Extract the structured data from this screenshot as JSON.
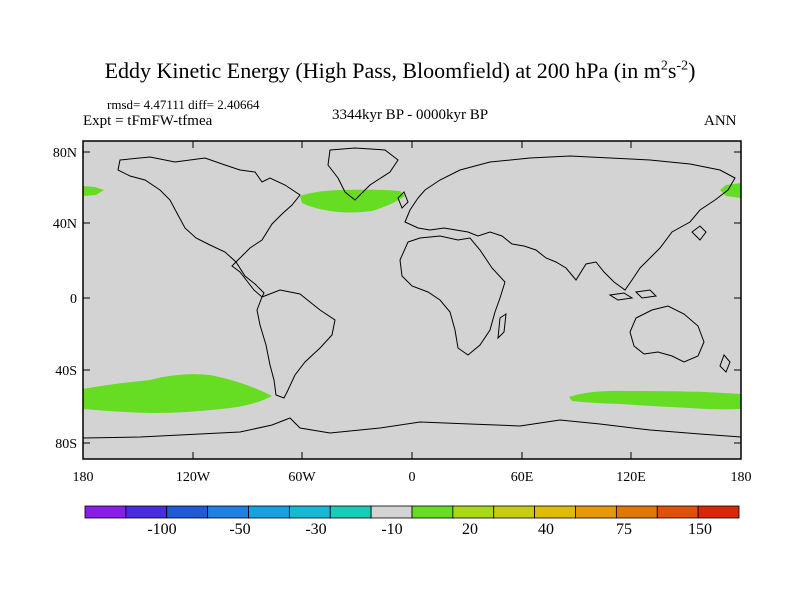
{
  "title": {
    "main": "Eddy Kinetic Energy (High Pass, Bloomfield) at 200 hPa (in m",
    "sup1": "2",
    "mid": "s",
    "sup2": "-2",
    "close": ")"
  },
  "stats": "rmsd= 4.47111 diff= 2.40664",
  "expt": "Expt = tFmFW-tfmea",
  "period": "3344kyr BP - 0000kyr BP",
  "season": "ANN",
  "axes": {
    "y_ticks": [
      "80N",
      "40N",
      "0",
      "40S",
      "80S"
    ],
    "x_ticks": [
      "180",
      "120W",
      "60W",
      "0",
      "60E",
      "120E",
      "180"
    ]
  },
  "colors": {
    "land_ocean_fill": "#d3d3d3",
    "positive_anomaly": "#66dd22",
    "coastline": "#000000"
  },
  "colorbar": {
    "colors": [
      "#8a1ee6",
      "#4b2be0",
      "#1f5ad8",
      "#1e80e0",
      "#18a0e0",
      "#16b8d8",
      "#18ccb8",
      "#d3d3d3",
      "#66dd22",
      "#a8d818",
      "#c8cc10",
      "#e0bc08",
      "#e69808",
      "#e07808",
      "#e05008",
      "#d82808"
    ],
    "labels": [
      "-100",
      "-50",
      "-30",
      "-10",
      "20",
      "40",
      "75",
      "150"
    ]
  },
  "anomaly_regions": [
    {
      "name": "north-pacific-west-edge"
    },
    {
      "name": "north-atlantic"
    },
    {
      "name": "north-pacific-east-edge"
    },
    {
      "name": "south-pacific"
    },
    {
      "name": "south-indian-ocean"
    }
  ]
}
